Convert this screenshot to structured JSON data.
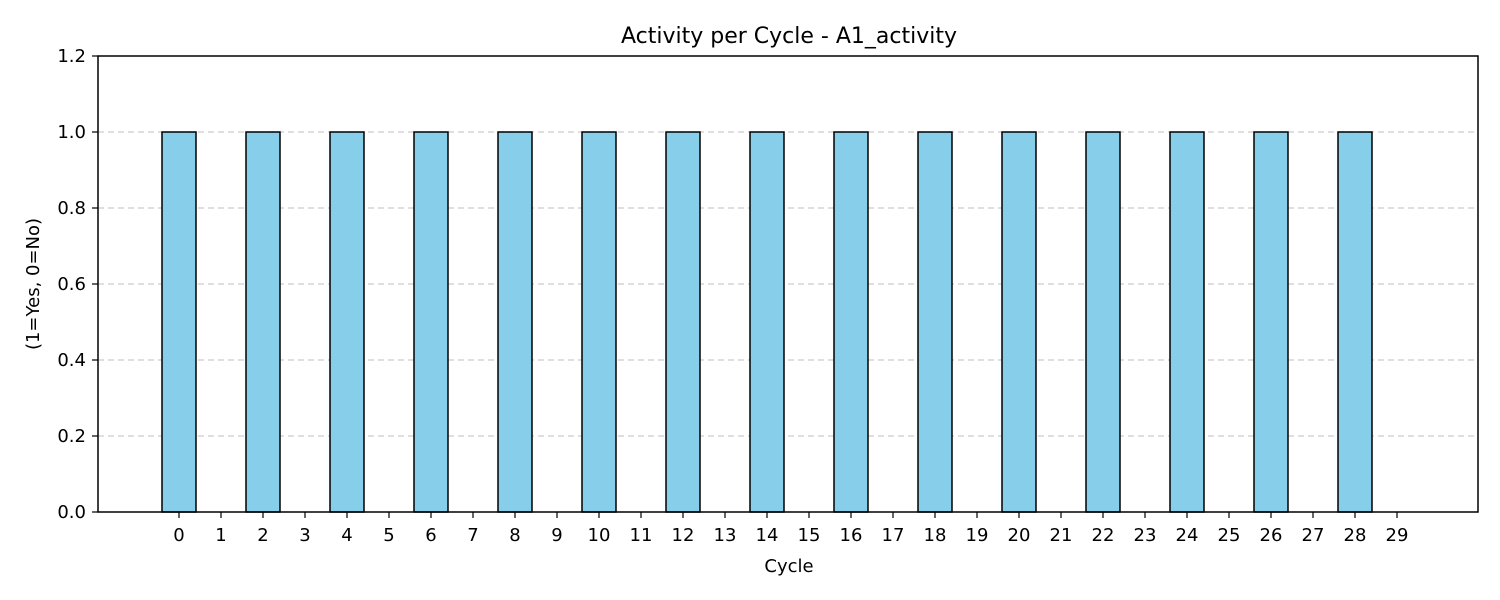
{
  "chart_data": {
    "type": "bar",
    "title": "Activity per Cycle - A1_activity",
    "xlabel": "Cycle",
    "ylabel": "(1=Yes, 0=No)",
    "categories": [
      "0",
      "1",
      "2",
      "3",
      "4",
      "5",
      "6",
      "7",
      "8",
      "9",
      "10",
      "11",
      "12",
      "13",
      "14",
      "15",
      "16",
      "17",
      "18",
      "19",
      "20",
      "21",
      "22",
      "23",
      "24",
      "25",
      "26",
      "27",
      "28",
      "29"
    ],
    "values": [
      1,
      0,
      1,
      0,
      1,
      0,
      1,
      0,
      1,
      0,
      1,
      0,
      1,
      0,
      1,
      0,
      1,
      0,
      1,
      0,
      1,
      0,
      1,
      0,
      1,
      0,
      1,
      0,
      1,
      0
    ],
    "ylim": [
      0,
      1.2
    ],
    "yticks": [
      "0.0",
      "0.2",
      "0.4",
      "0.6",
      "0.8",
      "1.0",
      "1.2"
    ],
    "grid": "y-dashed",
    "colors": {
      "bar_fill": "#87CEEB",
      "bar_edge": "#000000",
      "grid": "#cccccc"
    }
  }
}
